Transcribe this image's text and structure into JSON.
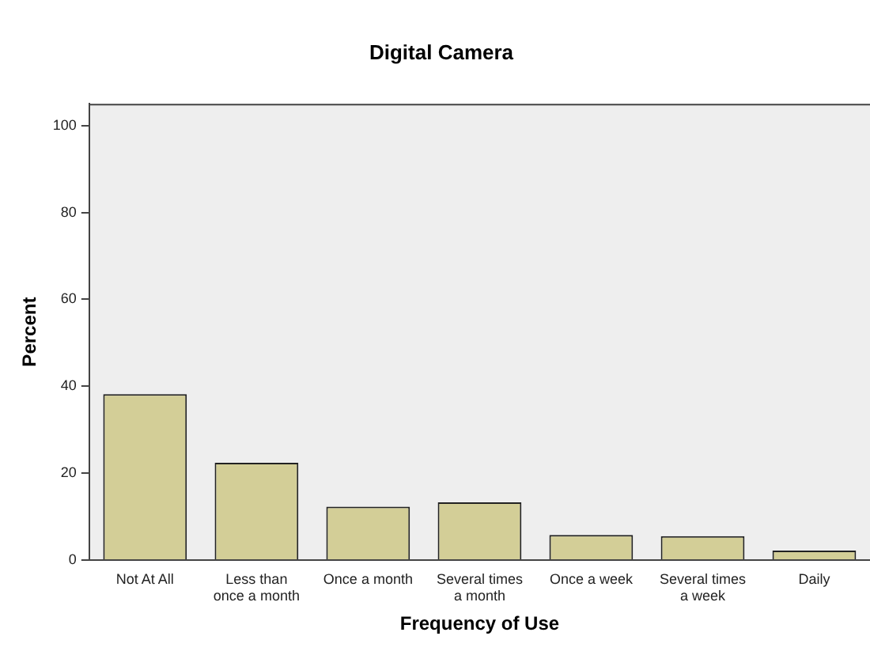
{
  "chart_data": {
    "type": "bar",
    "title": "Digital Camera",
    "xlabel": "Frequency of Use",
    "ylabel": "Percent",
    "categories": [
      "Not At All",
      "Less than once a month",
      "Once a month",
      "Several times a month",
      "Once a week",
      "Several times a week",
      "Daily"
    ],
    "values": [
      38.2,
      22.4,
      12.3,
      13.3,
      5.8,
      5.5,
      2.2
    ],
    "color": "#d3ce97",
    "ylim": [
      0,
      105
    ],
    "yticks": [
      0,
      20,
      40,
      60,
      80,
      100
    ],
    "grid": false,
    "legend": false
  }
}
